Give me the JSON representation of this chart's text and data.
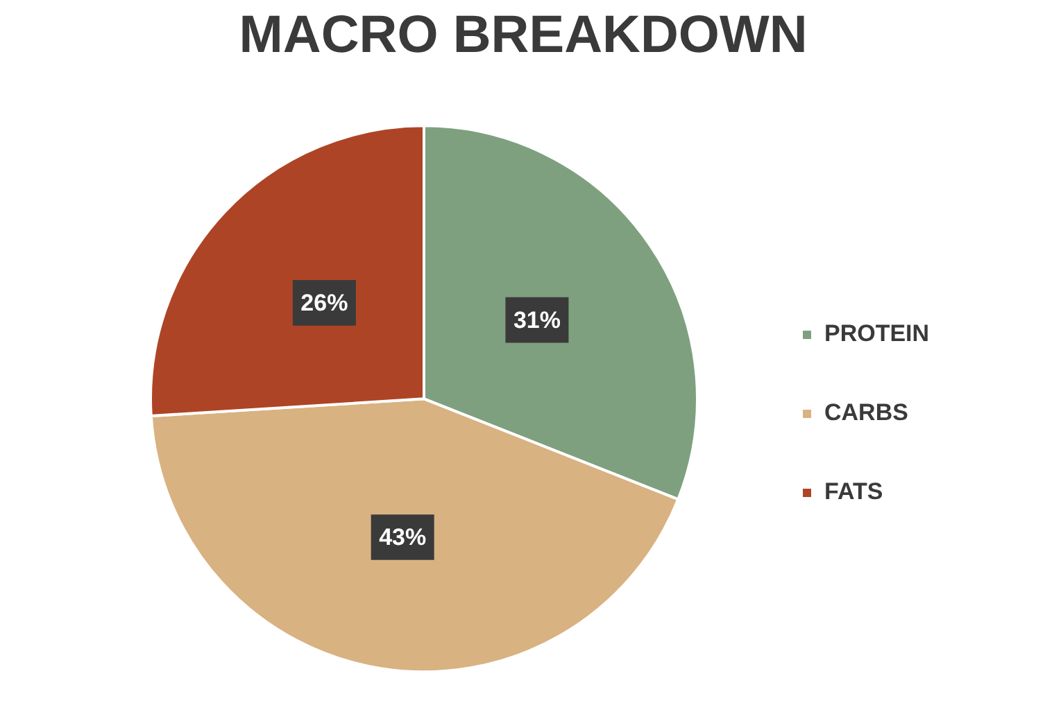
{
  "chart_data": {
    "type": "pie",
    "title": "MACRO BREAKDOWN",
    "categories": [
      "PROTEIN",
      "CARBS",
      "FATS"
    ],
    "values": [
      31,
      43,
      26
    ],
    "colors": [
      "#7ea07f",
      "#d9b282",
      "#ae4426"
    ],
    "value_labels": [
      "31%",
      "43%",
      "26%"
    ],
    "legend": "right"
  }
}
